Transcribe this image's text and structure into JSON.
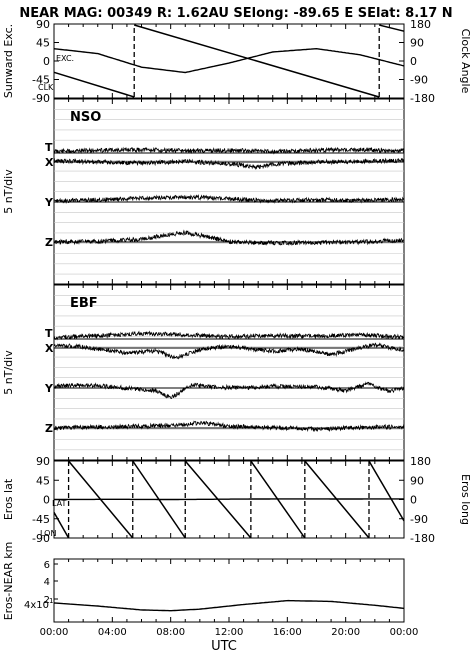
{
  "title": "NEAR MAG: 00349  R: 1.62AU  SElong: -89.65 E  SElat:   8.17 N",
  "xlabel": "UTC",
  "x_ticks": [
    "00:00",
    "04:00",
    "08:00",
    "12:00",
    "16:00",
    "20:00",
    "00:00"
  ],
  "chart_data": [
    {
      "type": "line",
      "panel": "sun-angles",
      "ylabel_left": "Sunward Exc.",
      "ylabel_right": "Clock Angle",
      "left_ticks": [
        "90",
        "45",
        "0",
        "-45",
        "-90"
      ],
      "right_ticks": [
        "180",
        "90",
        "0",
        "-90",
        "-180"
      ],
      "ylim_left": [
        -90,
        90
      ],
      "ylim_right": [
        -180,
        180
      ],
      "annotations": [
        "EXC.",
        "CLK"
      ],
      "series": [
        {
          "name": "EXC.",
          "x_hours": [
            0,
            3,
            6,
            9,
            12,
            15,
            18,
            21,
            24
          ],
          "values": [
            30,
            18,
            -15,
            -28,
            -5,
            22,
            30,
            15,
            -12
          ]
        },
        {
          "name": "CLK",
          "x_hours": [
            0,
            5.5,
            5.5,
            22.3,
            22.3,
            24
          ],
          "values": [
            -55,
            -175,
            175,
            -175,
            175,
            145
          ]
        }
      ]
    },
    {
      "type": "line",
      "panel": "nso",
      "label": "NSO",
      "ylabel": "5 nT/div",
      "traces": [
        {
          "name": "T",
          "x_hours": [
            0,
            3,
            6,
            9,
            12,
            15,
            18,
            21,
            24
          ],
          "offsets": [
            0.3,
            0.5,
            0.6,
            0.4,
            0.5,
            0.3,
            0.5,
            0.6,
            0.4
          ]
        },
        {
          "name": "X",
          "x_hours": [
            0,
            3,
            6,
            9,
            12,
            14,
            15,
            18,
            21,
            24
          ],
          "offsets": [
            0.2,
            0,
            -0.2,
            0.1,
            -0.3,
            -0.9,
            -0.4,
            0,
            0.1,
            0.3
          ]
        },
        {
          "name": "Y",
          "x_hours": [
            0,
            3,
            6,
            9,
            12,
            15,
            18,
            21,
            24
          ],
          "offsets": [
            0.2,
            0.4,
            0.7,
            0.9,
            0.6,
            0.2,
            0.4,
            0.3,
            0.5
          ]
        },
        {
          "name": "Z",
          "x_hours": [
            0,
            3,
            6,
            8,
            9,
            10,
            12,
            15,
            18,
            21,
            24
          ],
          "offsets": [
            0,
            0.1,
            0.5,
            1.4,
            1.7,
            1.2,
            0.1,
            -0.2,
            -0.1,
            0,
            0.3
          ]
        }
      ]
    },
    {
      "type": "line",
      "panel": "ebf",
      "label": "EBF",
      "ylabel": "5 nT/div",
      "traces": [
        {
          "name": "T",
          "x_hours": [
            0,
            3,
            6,
            9,
            12,
            15,
            18,
            21,
            24
          ],
          "offsets": [
            0.3,
            0.6,
            1,
            0.8,
            0.4,
            0.6,
            0.5,
            0.8,
            0.3
          ]
        },
        {
          "name": "X",
          "x_hours": [
            0,
            2,
            5,
            7,
            8.3,
            10,
            12,
            15,
            17,
            19,
            22,
            24
          ],
          "offsets": [
            0.5,
            0.2,
            -0.9,
            -0.5,
            -1.8,
            -0.3,
            0.3,
            -0.6,
            -0.2,
            -1.2,
            0.6,
            -0.4
          ]
        },
        {
          "name": "Y",
          "x_hours": [
            0,
            2,
            4,
            7,
            8,
            9.5,
            11,
            13,
            15,
            18,
            20,
            21.5,
            23,
            24
          ],
          "offsets": [
            0.3,
            0.6,
            0.2,
            -0.5,
            -1.8,
            0.6,
            0.2,
            0,
            0.3,
            0.2,
            -0.5,
            0.8,
            -0.6,
            0
          ]
        },
        {
          "name": "Z",
          "x_hours": [
            0,
            3,
            6,
            9,
            10,
            12,
            15,
            18,
            21,
            24
          ],
          "offsets": [
            0,
            0.2,
            0.3,
            0.6,
            1,
            0.3,
            0.1,
            -0.2,
            0.1,
            0.2
          ]
        }
      ]
    },
    {
      "type": "line",
      "panel": "eros-coords",
      "ylabel_left": "Eros lat",
      "ylabel_right": "Eros long",
      "left_ticks": [
        "90",
        "45",
        "0",
        "-45",
        "-90"
      ],
      "right_ticks": [
        "180",
        "90",
        "0",
        "-90",
        "-180"
      ],
      "ylim_left": [
        -90,
        90
      ],
      "ylim_right": [
        -180,
        180
      ],
      "annotations": [
        "LAT",
        "LON"
      ],
      "series": [
        {
          "name": "LAT",
          "x_hours": [
            0,
            4,
            8,
            12,
            16,
            20,
            24
          ],
          "values": [
            0,
            0.5,
            0,
            0.8,
            1.5,
            1.2,
            1.5
          ]
        },
        {
          "name": "LON",
          "x_hours": [
            0,
            1.0,
            1.0,
            5.4,
            5.4,
            9.0,
            9.0,
            13.5,
            13.5,
            17.2,
            17.2,
            21.6,
            21.6,
            24
          ],
          "values": [
            -60,
            -180,
            180,
            -180,
            180,
            -180,
            180,
            -180,
            180,
            -180,
            180,
            -180,
            180,
            -100
          ]
        }
      ]
    },
    {
      "type": "line",
      "panel": "eros-near-distance",
      "ylabel": "Eros-NEAR km",
      "y_tick_labels": [
        "6",
        "4",
        "2"
      ],
      "annotation": "4x10",
      "annotation_sup": "1",
      "series": [
        {
          "name": "distance",
          "x_hours": [
            0,
            3,
            6,
            8,
            10,
            13,
            16,
            19,
            22,
            24
          ],
          "values": [
            41,
            39,
            36.5,
            36,
            37,
            40,
            42.5,
            42,
            39.5,
            37.5
          ]
        }
      ]
    }
  ]
}
